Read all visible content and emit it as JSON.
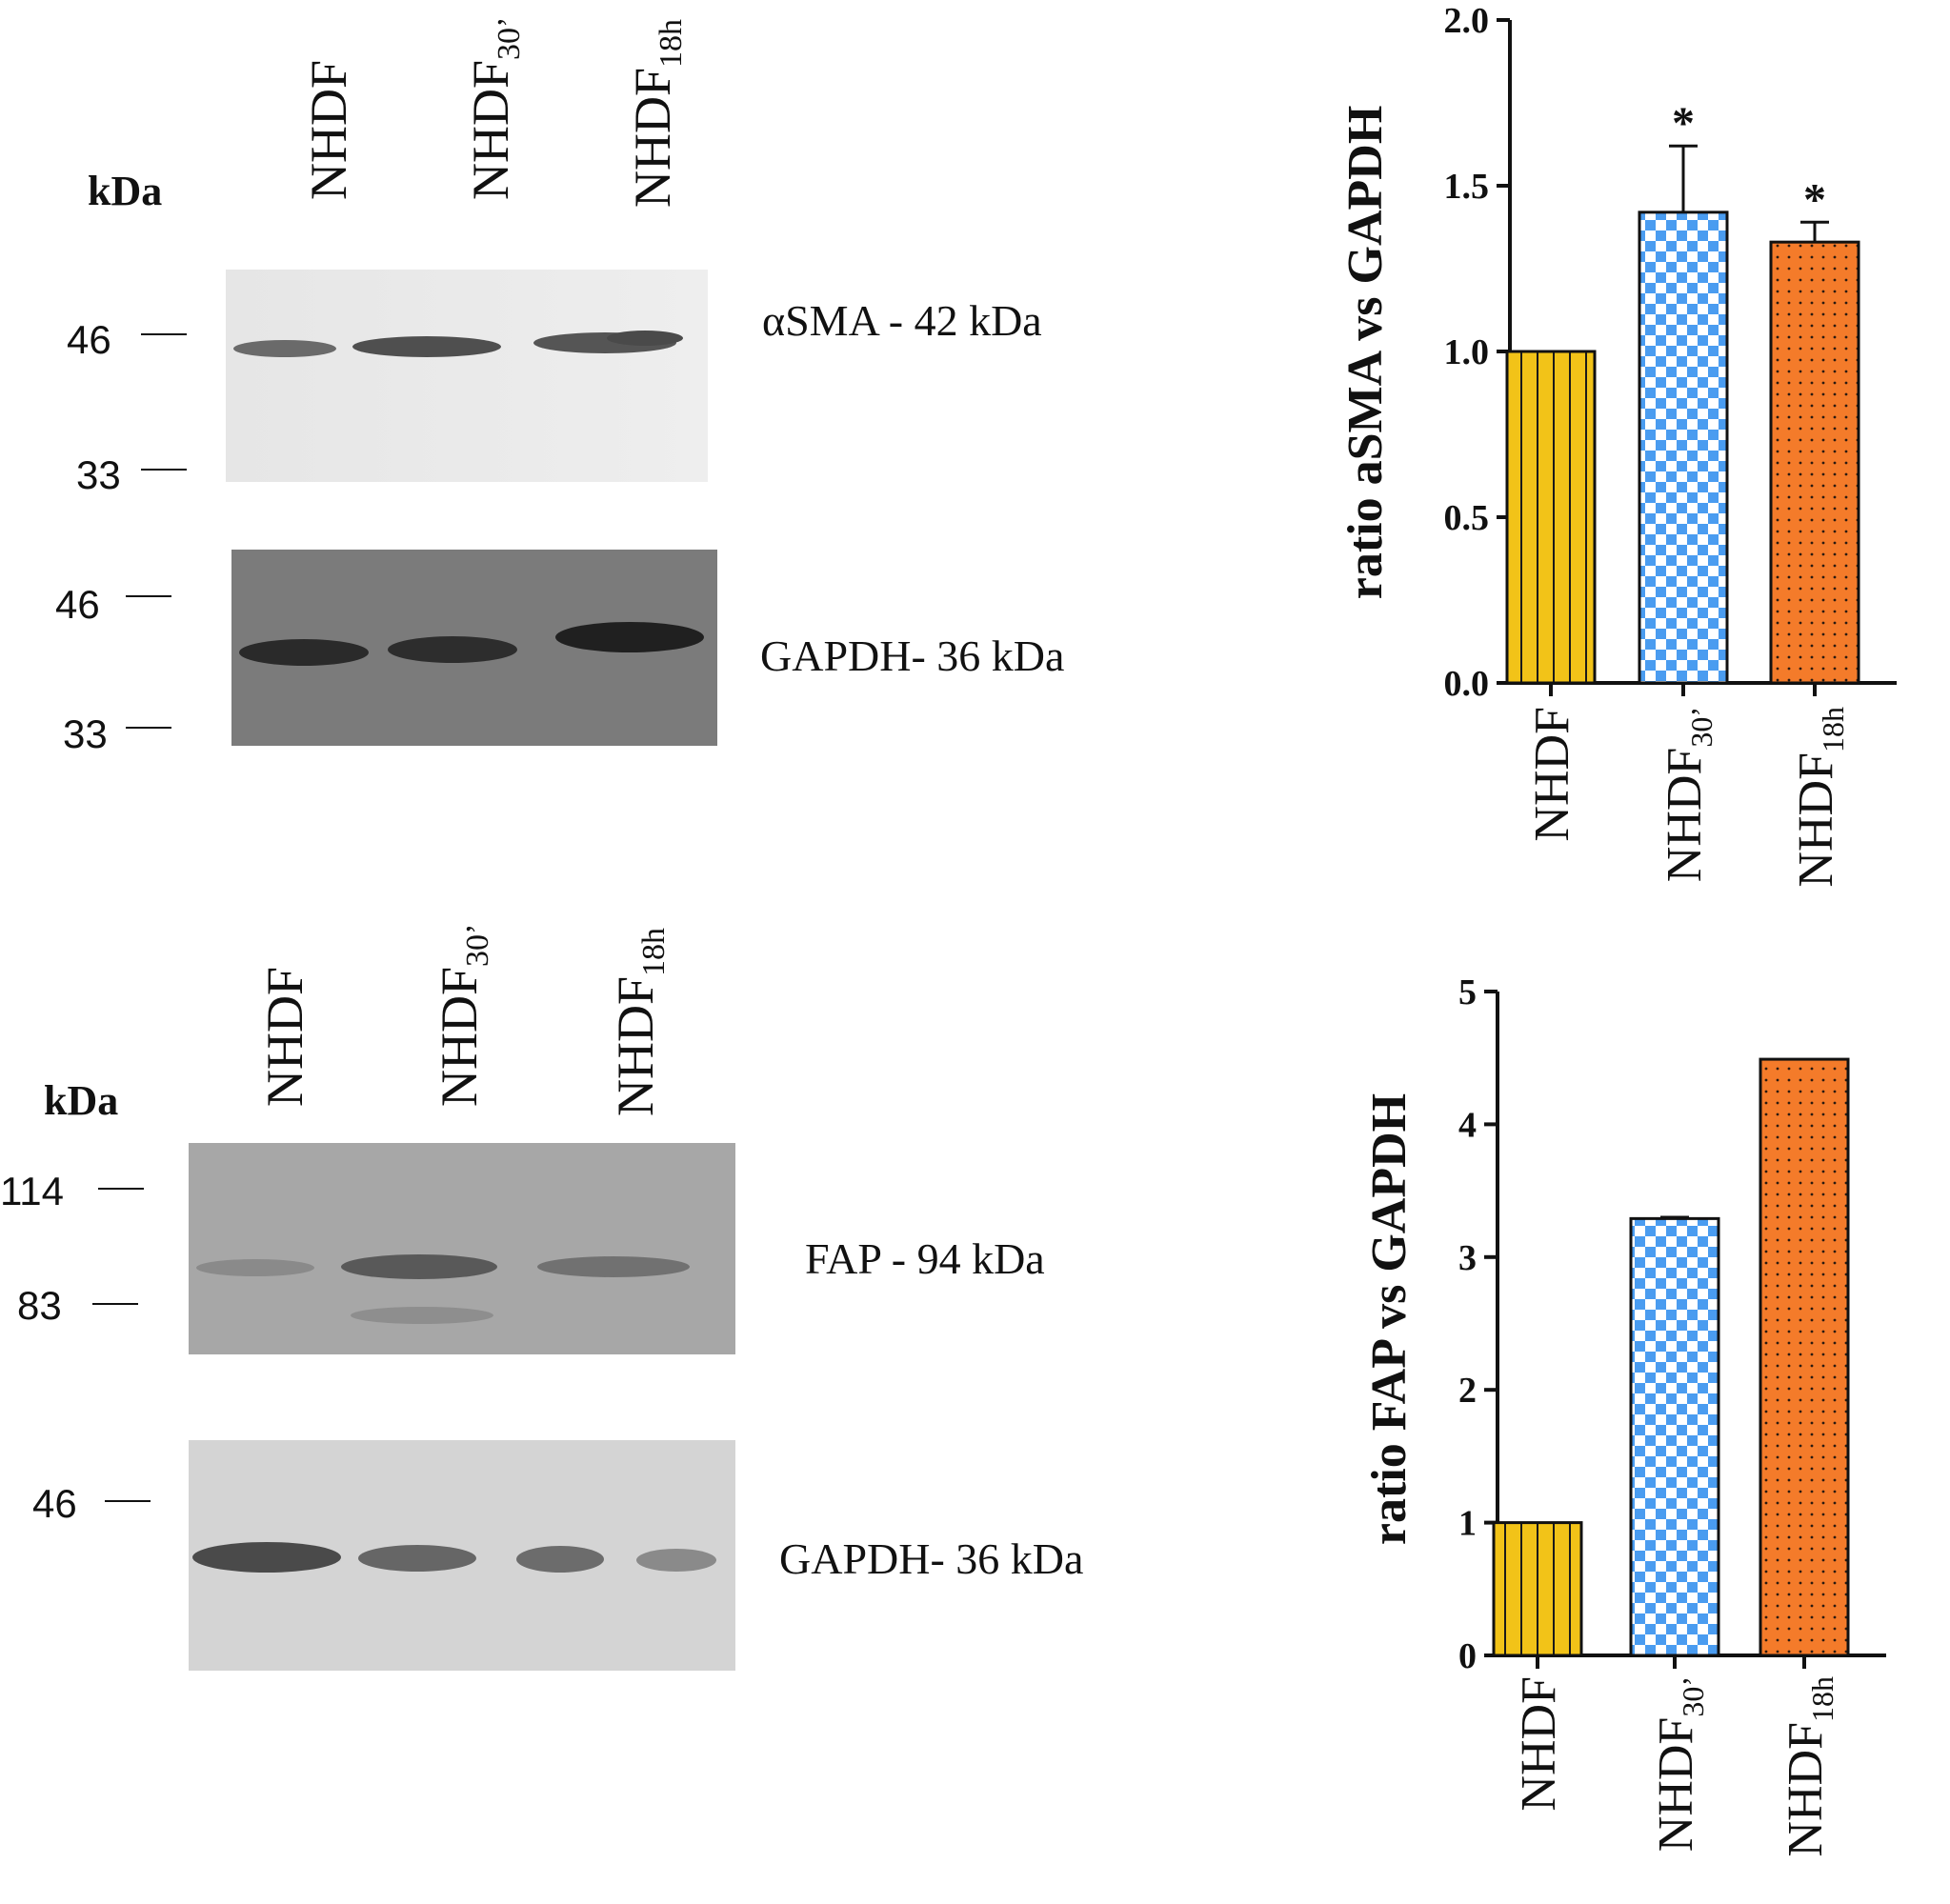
{
  "blot_top": {
    "kda_label": "kDa",
    "lanes": [
      {
        "name": "NHDF",
        "sub": ""
      },
      {
        "name": "NHDF",
        "sub": "30’"
      },
      {
        "name": "NHDF",
        "sub": "18h"
      }
    ],
    "alpha_markers": [
      "46",
      "33"
    ],
    "gapdh_markers": [
      "46",
      "33"
    ],
    "alpha_label": "αSMA - 42 kDa",
    "gapdh_label": "GAPDH- 36 kDa"
  },
  "blot_bottom": {
    "kda_label": "kDa",
    "lanes": [
      {
        "name": "NHDF",
        "sub": ""
      },
      {
        "name": "NHDF",
        "sub": "30’"
      },
      {
        "name": "NHDF",
        "sub": "18h"
      }
    ],
    "fap_markers": [
      "114",
      "83"
    ],
    "gapdh_markers": [
      "46"
    ],
    "fap_label": "FAP - 94 kDa",
    "gapdh_label": "GAPDH- 36 kDa"
  },
  "chart_data": [
    {
      "type": "bar",
      "ylabel": "ratio aSMA vs GAPDH",
      "ylim": [
        0,
        2.0
      ],
      "yticks": [
        "0.0",
        "0.5",
        "1.0",
        "1.5",
        "2.0"
      ],
      "categories": [
        {
          "name": "NHDF",
          "sub": ""
        },
        {
          "name": "NHDF",
          "sub": "30’"
        },
        {
          "name": "NHDF",
          "sub": "18h"
        }
      ],
      "values": [
        1.0,
        1.42,
        1.33
      ],
      "errors": [
        0,
        0.2,
        0.06
      ],
      "significance": [
        "",
        "*",
        "*"
      ],
      "colors": [
        "#f2c318",
        "#4a9cf0",
        "#f47b2a"
      ],
      "patterns": [
        "vertical-lines",
        "checkerboard",
        "dots"
      ]
    },
    {
      "type": "bar",
      "ylabel": "ratio FAP vs GAPDH",
      "ylim": [
        0,
        5
      ],
      "yticks": [
        "0",
        "1",
        "2",
        "3",
        "4",
        "5"
      ],
      "categories": [
        {
          "name": "NHDF",
          "sub": ""
        },
        {
          "name": "NHDF",
          "sub": "30’"
        },
        {
          "name": "NHDF",
          "sub": "18h"
        }
      ],
      "values": [
        1.0,
        3.29,
        4.49
      ],
      "errors": [
        0,
        0.01,
        0
      ],
      "significance": [
        "",
        "",
        ""
      ],
      "colors": [
        "#f2c318",
        "#4a9cf0",
        "#f47b2a"
      ],
      "patterns": [
        "vertical-lines",
        "checkerboard",
        "dots"
      ]
    }
  ]
}
